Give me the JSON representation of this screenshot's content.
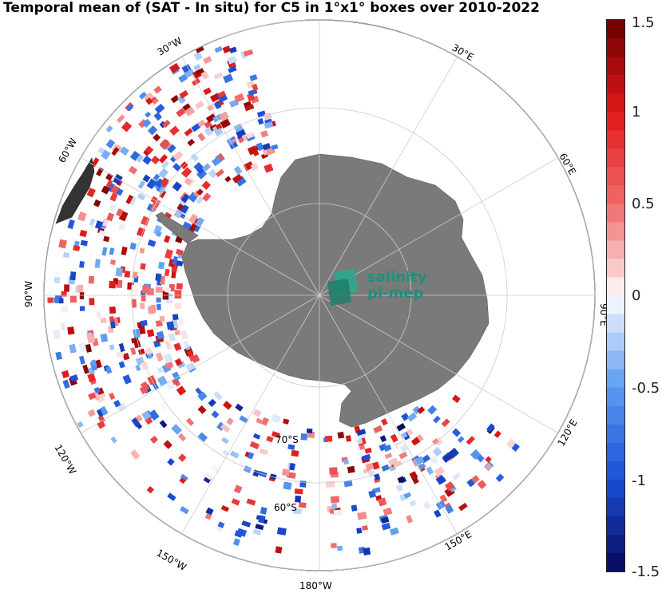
{
  "title": "Temporal mean of (SAT - In situ) for C5 in 1°x1° boxes over 2010-2022",
  "map": {
    "projection": "south-polar-stereographic",
    "continent": "Antarctica",
    "continent_color": "#7a7a7a",
    "ocean_color": "#ffffff",
    "longitude_labels": [
      "30°E",
      "60°E",
      "90°E",
      "120°E",
      "150°E",
      "180°W",
      "150°W",
      "120°W",
      "90°W",
      "60°W",
      "30°W"
    ],
    "latitude_labels": [
      "60°S",
      "70°S"
    ]
  },
  "logo": {
    "line1": "salinity",
    "line2": "pi-mep",
    "color": "#1f8f7f"
  },
  "colorbar": {
    "min": -1.5,
    "max": 1.5,
    "ticks": [
      "1.5",
      "1",
      "0.5",
      "0",
      "-0.5",
      "-1",
      "-1.5"
    ],
    "colormap": "blue-white-red diverging",
    "low_color": "#08085a",
    "mid_color": "#ffffff",
    "high_color": "#6b0000"
  }
}
